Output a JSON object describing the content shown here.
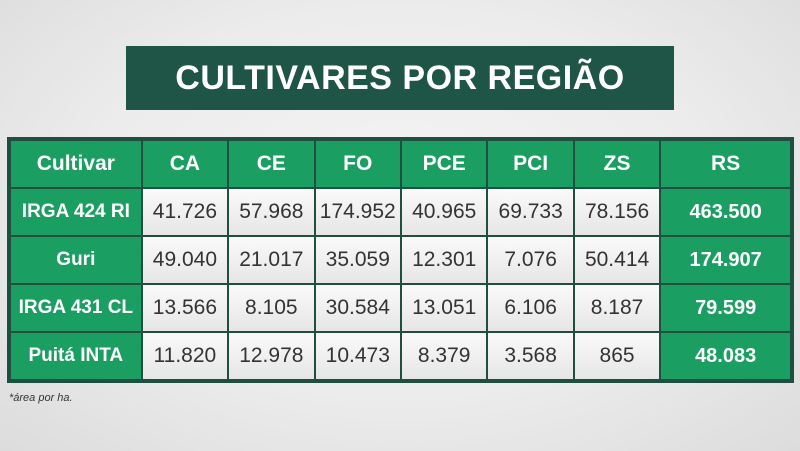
{
  "title": "CULTIVARES POR REGIÃO",
  "footnote": "*área por ha.",
  "chart_data": {
    "type": "table",
    "title": "CULTIVARES POR REGIÃO",
    "columns": [
      "Cultivar",
      "CA",
      "CE",
      "FO",
      "PCE",
      "PCI",
      "ZS",
      "RS"
    ],
    "rows": [
      {
        "cultivar": "IRGA 424 RI",
        "values": [
          "41.726",
          "57.968",
          "174.952",
          "40.965",
          "69.733",
          "78.156"
        ],
        "total": "463.500"
      },
      {
        "cultivar": "Guri",
        "values": [
          "49.040",
          "21.017",
          "35.059",
          "12.301",
          "7.076",
          "50.414"
        ],
        "total": "174.907"
      },
      {
        "cultivar": "IRGA 431 CL",
        "values": [
          "13.566",
          "8.105",
          "30.584",
          "13.051",
          "6.106",
          "8.187"
        ],
        "total": "79.599"
      },
      {
        "cultivar": "Puitá INTA",
        "values": [
          "11.820",
          "12.978",
          "10.473",
          "8.379",
          "3.568",
          "865"
        ],
        "total": "48.083"
      }
    ],
    "note": "*área por ha."
  },
  "colors": {
    "title_bg": "#1f5546",
    "header_green": "#1b9e62",
    "border_dark": "#1f4f40",
    "cell_bg": "#f0f0f0"
  }
}
